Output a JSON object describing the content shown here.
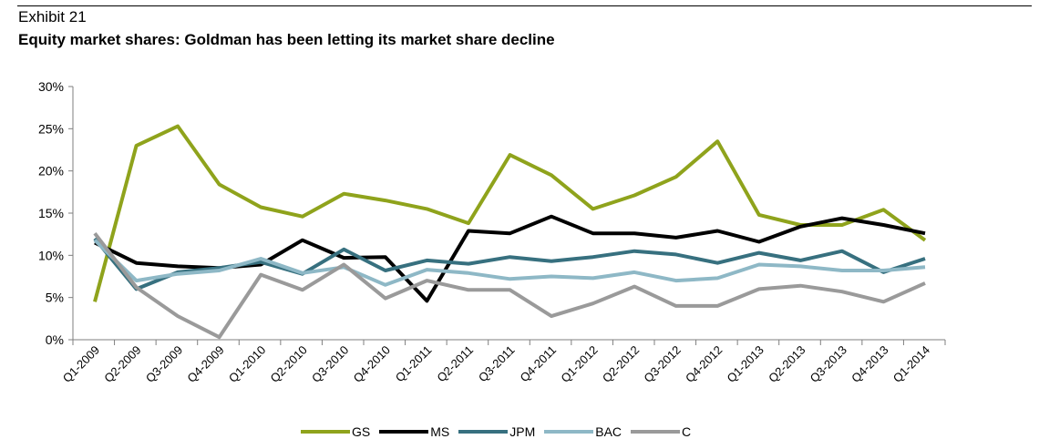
{
  "header": {
    "exhibit": "Exhibit 21",
    "title": "Equity market shares: Goldman has been letting its market share decline"
  },
  "chart_data": {
    "type": "line",
    "categories": [
      "Q1-2009",
      "Q2-2009",
      "Q3-2009",
      "Q4-2009",
      "Q1-2010",
      "Q2-2010",
      "Q3-2010",
      "Q4-2010",
      "Q1-2011",
      "Q2-2011",
      "Q3-2011",
      "Q4-2011",
      "Q1-2012",
      "Q2-2012",
      "Q3-2012",
      "Q4-2012",
      "Q1-2013",
      "Q2-2013",
      "Q3-2013",
      "Q4-2013",
      "Q1-2014"
    ],
    "ylim": [
      0,
      30
    ],
    "yticks": [
      "0%",
      "5%",
      "10%",
      "15%",
      "20%",
      "25%",
      "30%"
    ],
    "legend_position": "bottom",
    "series": [
      {
        "name": "GS",
        "color": "#8fa31c",
        "values": [
          4.5,
          23.0,
          25.3,
          18.4,
          15.7,
          14.6,
          17.3,
          16.5,
          15.5,
          13.8,
          21.9,
          19.5,
          15.5,
          17.1,
          19.3,
          23.5,
          14.8,
          13.6,
          13.6,
          15.4,
          11.8
        ]
      },
      {
        "name": "MS",
        "color": "#000000",
        "values": [
          11.5,
          9.1,
          8.7,
          8.5,
          8.9,
          11.8,
          9.7,
          9.8,
          4.6,
          12.9,
          12.6,
          14.6,
          12.6,
          12.6,
          12.1,
          12.9,
          11.6,
          13.4,
          14.4,
          13.6,
          12.6
        ]
      },
      {
        "name": "JPM",
        "color": "#37707f",
        "values": [
          12.0,
          6.0,
          8.0,
          8.5,
          9.2,
          7.8,
          10.7,
          8.2,
          9.4,
          9.0,
          9.8,
          9.3,
          9.8,
          10.5,
          10.1,
          9.1,
          10.3,
          9.4,
          10.5,
          8.0,
          9.6
        ]
      },
      {
        "name": "BAC",
        "color": "#8eb8c6",
        "values": [
          11.8,
          7.0,
          7.8,
          8.2,
          9.6,
          7.9,
          8.6,
          6.5,
          8.3,
          7.9,
          7.2,
          7.5,
          7.3,
          8.0,
          7.0,
          7.3,
          8.9,
          8.7,
          8.2,
          8.2,
          8.6
        ]
      },
      {
        "name": "C",
        "color": "#9a9a9a",
        "values": [
          12.6,
          6.2,
          2.8,
          0.3,
          7.7,
          5.9,
          8.9,
          4.9,
          7.0,
          5.9,
          5.9,
          2.8,
          4.3,
          6.3,
          4.0,
          4.0,
          6.0,
          6.4,
          5.7,
          4.5,
          6.7
        ]
      }
    ]
  }
}
